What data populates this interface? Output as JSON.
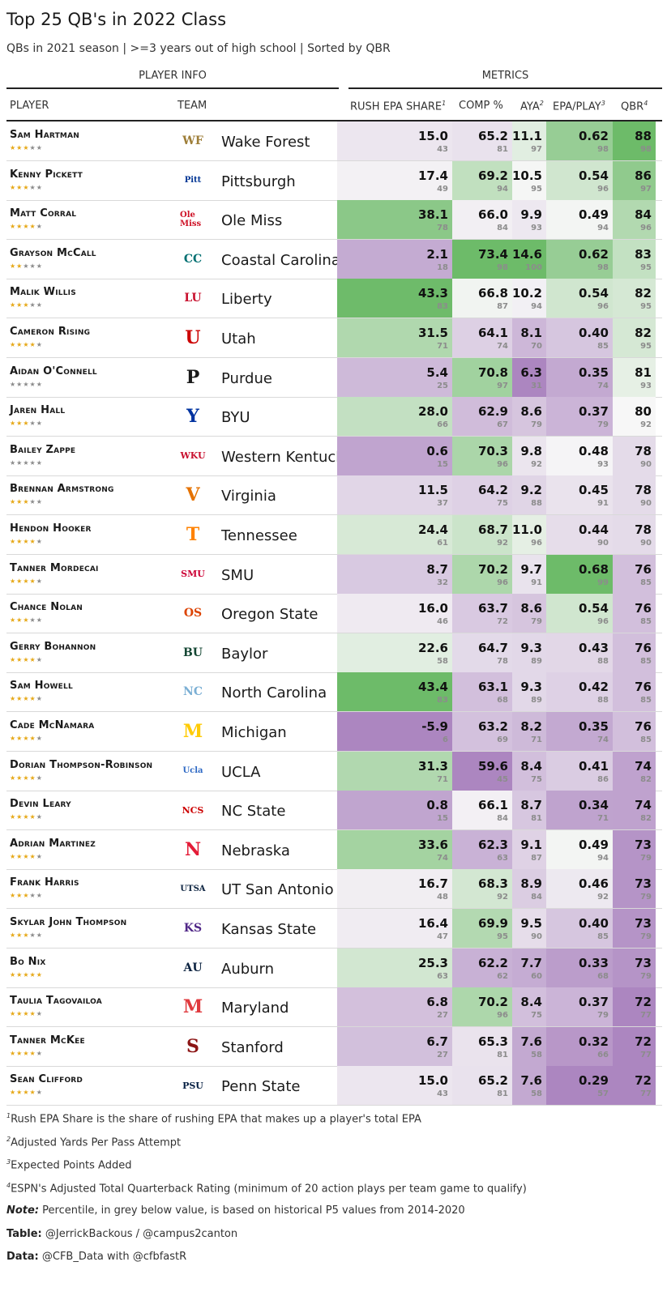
{
  "title": "Top 25 QB's in 2022 Class",
  "subtitle": "QBs in 2021 season | >=3 years out of high school | Sorted by QBR",
  "spanners": {
    "player_info": "PLAYER INFO",
    "metrics": "METRICS"
  },
  "columns": {
    "player": "PLAYER",
    "team": "TEAM",
    "rush": "RUSH EPA SHARE",
    "rush_sup": "1",
    "comp": "COMP %",
    "aya": "AYA",
    "aya_sup": "2",
    "epa": "EPA/PLAY",
    "epa_sup": "3",
    "qbr": "QBR",
    "qbr_sup": "4"
  },
  "colors": {
    "green_max": "#6dbb69",
    "neutral": "#f7f7f7",
    "purple_max": "#ac86c0",
    "star_on": "#e6a817",
    "star_off": "#8a8a8a"
  },
  "chart_data": {
    "type": "table",
    "rows": [
      {
        "player": "Sam Hartman",
        "stars": 3,
        "team": "Wake Forest",
        "logo": "WF",
        "logo_color": "#9e7e38",
        "rush": "15.0",
        "rush_p": 43,
        "comp": "65.2",
        "comp_p": 81,
        "aya": "11.1",
        "aya_p": 97,
        "epa": "0.62",
        "epa_p": 98,
        "qbr": "88",
        "qbr_p": 98
      },
      {
        "player": "Kenny Pickett",
        "stars": 3,
        "team": "Pittsburgh",
        "logo": "Pitt",
        "logo_color": "#003594",
        "rush": "17.4",
        "rush_p": 49,
        "comp": "69.2",
        "comp_p": 94,
        "aya": "10.5",
        "aya_p": 95,
        "epa": "0.54",
        "epa_p": 96,
        "qbr": "86",
        "qbr_p": 97
      },
      {
        "player": "Matt Corral",
        "stars": 4,
        "team": "Ole Miss",
        "logo": "Ole Miss",
        "logo_color": "#ce1126",
        "rush": "38.1",
        "rush_p": 78,
        "comp": "66.0",
        "comp_p": 84,
        "aya": "9.9",
        "aya_p": 93,
        "epa": "0.49",
        "epa_p": 94,
        "qbr": "84",
        "qbr_p": 96
      },
      {
        "player": "Grayson McCall",
        "stars": 2,
        "team": "Coastal Carolina",
        "logo": "CC",
        "logo_color": "#006f71",
        "rush": "2.1",
        "rush_p": 18,
        "comp": "73.4",
        "comp_p": 98,
        "aya": "14.6",
        "aya_p": 100,
        "epa": "0.62",
        "epa_p": 98,
        "qbr": "83",
        "qbr_p": 95
      },
      {
        "player": "Malik Willis",
        "stars": 3,
        "team": "Liberty",
        "logo": "LU",
        "logo_color": "#c8102e",
        "rush": "43.3",
        "rush_p": 83,
        "comp": "66.8",
        "comp_p": 87,
        "aya": "10.2",
        "aya_p": 94,
        "epa": "0.54",
        "epa_p": 96,
        "qbr": "82",
        "qbr_p": 95
      },
      {
        "player": "Cameron Rising",
        "stars": 4,
        "team": "Utah",
        "logo": "U",
        "logo_color": "#cc0000",
        "rush": "31.5",
        "rush_p": 71,
        "comp": "64.1",
        "comp_p": 74,
        "aya": "8.1",
        "aya_p": 70,
        "epa": "0.40",
        "epa_p": 85,
        "qbr": "82",
        "qbr_p": 95
      },
      {
        "player": "Aidan O'Connell",
        "stars": 0,
        "team": "Purdue",
        "logo": "P",
        "logo_color": "#1a1a1a",
        "rush": "5.4",
        "rush_p": 25,
        "comp": "70.8",
        "comp_p": 97,
        "aya": "6.3",
        "aya_p": 31,
        "epa": "0.35",
        "epa_p": 74,
        "qbr": "81",
        "qbr_p": 93
      },
      {
        "player": "Jaren Hall",
        "stars": 3,
        "team": "BYU",
        "logo": "Y",
        "logo_color": "#0033a0",
        "rush": "28.0",
        "rush_p": 66,
        "comp": "62.9",
        "comp_p": 67,
        "aya": "8.6",
        "aya_p": 79,
        "epa": "0.37",
        "epa_p": 79,
        "qbr": "80",
        "qbr_p": 92
      },
      {
        "player": "Bailey Zappe",
        "stars": 0,
        "team": "Western Kentucky",
        "logo": "WKU",
        "logo_color": "#c8102e",
        "rush": "0.6",
        "rush_p": 15,
        "comp": "70.3",
        "comp_p": 96,
        "aya": "9.8",
        "aya_p": 92,
        "epa": "0.48",
        "epa_p": 93,
        "qbr": "78",
        "qbr_p": 90
      },
      {
        "player": "Brennan Armstrong",
        "stars": 3,
        "team": "Virginia",
        "logo": "V",
        "logo_color": "#e57200",
        "rush": "11.5",
        "rush_p": 37,
        "comp": "64.2",
        "comp_p": 75,
        "aya": "9.2",
        "aya_p": 88,
        "epa": "0.45",
        "epa_p": 91,
        "qbr": "78",
        "qbr_p": 90
      },
      {
        "player": "Hendon Hooker",
        "stars": 4,
        "team": "Tennessee",
        "logo": "T",
        "logo_color": "#ff8200",
        "rush": "24.4",
        "rush_p": 61,
        "comp": "68.7",
        "comp_p": 92,
        "aya": "11.0",
        "aya_p": 96,
        "epa": "0.44",
        "epa_p": 90,
        "qbr": "78",
        "qbr_p": 90
      },
      {
        "player": "Tanner Mordecai",
        "stars": 4,
        "team": "SMU",
        "logo": "SMU",
        "logo_color": "#cc0035",
        "rush": "8.7",
        "rush_p": 32,
        "comp": "70.2",
        "comp_p": 96,
        "aya": "9.7",
        "aya_p": 91,
        "epa": "0.68",
        "epa_p": 99,
        "qbr": "76",
        "qbr_p": 85
      },
      {
        "player": "Chance Nolan",
        "stars": 3,
        "team": "Oregon State",
        "logo": "OS",
        "logo_color": "#dc4405",
        "rush": "16.0",
        "rush_p": 46,
        "comp": "63.7",
        "comp_p": 72,
        "aya": "8.6",
        "aya_p": 79,
        "epa": "0.54",
        "epa_p": 96,
        "qbr": "76",
        "qbr_p": 85
      },
      {
        "player": "Gerry Bohannon",
        "stars": 4,
        "team": "Baylor",
        "logo": "BU",
        "logo_color": "#154734",
        "rush": "22.6",
        "rush_p": 58,
        "comp": "64.7",
        "comp_p": 78,
        "aya": "9.3",
        "aya_p": 89,
        "epa": "0.43",
        "epa_p": 88,
        "qbr": "76",
        "qbr_p": 85
      },
      {
        "player": "Sam Howell",
        "stars": 4,
        "team": "North Carolina",
        "logo": "NC",
        "logo_color": "#7bafd4",
        "rush": "43.4",
        "rush_p": 83,
        "comp": "63.1",
        "comp_p": 68,
        "aya": "9.3",
        "aya_p": 89,
        "epa": "0.42",
        "epa_p": 88,
        "qbr": "76",
        "qbr_p": 85
      },
      {
        "player": "Cade McNamara",
        "stars": 4,
        "team": "Michigan",
        "logo": "M",
        "logo_color": "#ffcb05",
        "rush": "-5.9",
        "rush_p": 6,
        "comp": "63.2",
        "comp_p": 69,
        "aya": "8.2",
        "aya_p": 71,
        "epa": "0.35",
        "epa_p": 74,
        "qbr": "76",
        "qbr_p": 85
      },
      {
        "player": "Dorian Thompson-Robinson",
        "stars": 4,
        "team": "UCLA",
        "logo": "Ucla",
        "logo_color": "#2d68c4",
        "rush": "31.3",
        "rush_p": 71,
        "comp": "59.6",
        "comp_p": 45,
        "aya": "8.4",
        "aya_p": 75,
        "epa": "0.41",
        "epa_p": 86,
        "qbr": "74",
        "qbr_p": 82
      },
      {
        "player": "Devin Leary",
        "stars": 4,
        "team": "NC State",
        "logo": "NCS",
        "logo_color": "#cc0000",
        "rush": "0.8",
        "rush_p": 15,
        "comp": "66.1",
        "comp_p": 84,
        "aya": "8.7",
        "aya_p": 81,
        "epa": "0.34",
        "epa_p": 71,
        "qbr": "74",
        "qbr_p": 82
      },
      {
        "player": "Adrian Martinez",
        "stars": 4,
        "team": "Nebraska",
        "logo": "N",
        "logo_color": "#e41c38",
        "rush": "33.6",
        "rush_p": 74,
        "comp": "62.3",
        "comp_p": 63,
        "aya": "9.1",
        "aya_p": 87,
        "epa": "0.49",
        "epa_p": 94,
        "qbr": "73",
        "qbr_p": 79
      },
      {
        "player": "Frank Harris",
        "stars": 3,
        "team": "UT San Antonio",
        "logo": "UTSA",
        "logo_color": "#0c2340",
        "rush": "16.7",
        "rush_p": 48,
        "comp": "68.3",
        "comp_p": 92,
        "aya": "8.9",
        "aya_p": 84,
        "epa": "0.46",
        "epa_p": 92,
        "qbr": "73",
        "qbr_p": 79
      },
      {
        "player": "Skylar John Thompson",
        "stars": 3,
        "team": "Kansas State",
        "logo": "KS",
        "logo_color": "#512888",
        "rush": "16.4",
        "rush_p": 47,
        "comp": "69.9",
        "comp_p": 95,
        "aya": "9.5",
        "aya_p": 90,
        "epa": "0.40",
        "epa_p": 85,
        "qbr": "73",
        "qbr_p": 79
      },
      {
        "player": "Bo Nix",
        "stars": 5,
        "team": "Auburn",
        "logo": "AU",
        "logo_color": "#0c2340",
        "rush": "25.3",
        "rush_p": 63,
        "comp": "62.2",
        "comp_p": 62,
        "aya": "7.7",
        "aya_p": 60,
        "epa": "0.33",
        "epa_p": 68,
        "qbr": "73",
        "qbr_p": 79
      },
      {
        "player": "Taulia Tagovailoa",
        "stars": 4,
        "team": "Maryland",
        "logo": "M",
        "logo_color": "#e03a3e",
        "rush": "6.8",
        "rush_p": 27,
        "comp": "70.2",
        "comp_p": 96,
        "aya": "8.4",
        "aya_p": 75,
        "epa": "0.37",
        "epa_p": 79,
        "qbr": "72",
        "qbr_p": 77
      },
      {
        "player": "Tanner McKee",
        "stars": 4,
        "team": "Stanford",
        "logo": "S",
        "logo_color": "#8c1515",
        "rush": "6.7",
        "rush_p": 27,
        "comp": "65.3",
        "comp_p": 81,
        "aya": "7.6",
        "aya_p": 58,
        "epa": "0.32",
        "epa_p": 66,
        "qbr": "72",
        "qbr_p": 77
      },
      {
        "player": "Sean Clifford",
        "stars": 4,
        "team": "Penn State",
        "logo": "PSU",
        "logo_color": "#041e42",
        "rush": "15.0",
        "rush_p": 43,
        "comp": "65.2",
        "comp_p": 81,
        "aya": "7.6",
        "aya_p": 58,
        "epa": "0.29",
        "epa_p": 57,
        "qbr": "72",
        "qbr_p": 77
      }
    ]
  },
  "footnotes": [
    {
      "mark": "1",
      "text": "Rush EPA Share is the share of rushing EPA that makes up a player's total EPA"
    },
    {
      "mark": "2",
      "text": "Adjusted Yards Per Pass Attempt"
    },
    {
      "mark": "3",
      "text": "Expected Points Added"
    },
    {
      "mark": "4",
      "text": "ESPN's Adjusted Total Quarterback Rating (minimum of 20 action plays per team game to qualify)"
    }
  ],
  "notes": [
    {
      "label": "Note:",
      "text": " Percentile, in grey below value, is based on historical P5 values from 2014-2020",
      "italic": true
    },
    {
      "label": "Table:",
      "text": " @JerrickBackous / @campus2canton",
      "italic": false
    },
    {
      "label": "Data:",
      "text": " @CFB_Data with @cfbfastR",
      "italic": false
    }
  ]
}
